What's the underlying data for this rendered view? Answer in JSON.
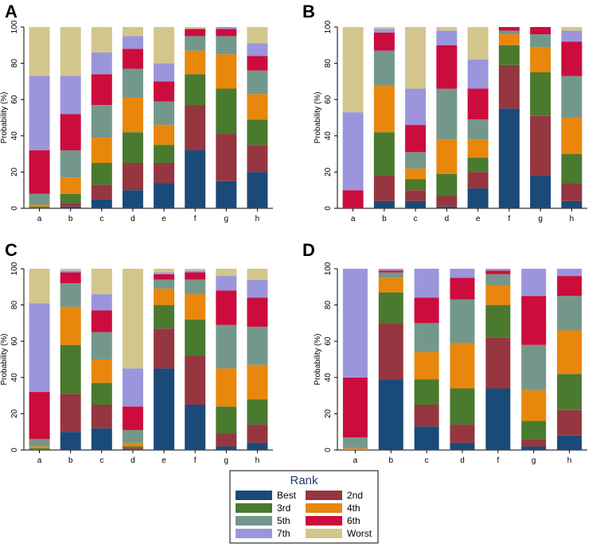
{
  "chart_data": [
    {
      "panel": "A",
      "type": "bar",
      "stacked": true,
      "ylabel": "Probability (%)",
      "xlabel": "",
      "ylim": [
        0,
        100
      ],
      "yticks": [
        "0",
        "20",
        "40",
        "60",
        "80",
        "100"
      ],
      "categories": [
        "a",
        "b",
        "c",
        "d",
        "e",
        "f",
        "g",
        "h"
      ],
      "series": [
        {
          "name": "Best",
          "values": [
            0,
            1,
            5,
            10,
            14,
            32,
            15,
            20
          ]
        },
        {
          "name": "2nd",
          "values": [
            0,
            2,
            8,
            15,
            11,
            25,
            26,
            15
          ]
        },
        {
          "name": "3rd",
          "values": [
            1,
            5,
            12,
            17,
            10,
            17,
            25,
            14
          ]
        },
        {
          "name": "4th",
          "values": [
            1,
            9,
            14,
            19,
            11,
            13,
            19,
            14
          ]
        },
        {
          "name": "5th",
          "values": [
            6,
            15,
            18,
            16,
            13,
            8,
            10,
            13
          ]
        },
        {
          "name": "6th",
          "values": [
            24,
            20,
            17,
            11,
            11,
            4,
            4,
            8
          ]
        },
        {
          "name": "7th",
          "values": [
            41,
            21,
            12,
            7,
            10,
            0,
            1,
            7
          ]
        },
        {
          "name": "Worst",
          "values": [
            27,
            27,
            14,
            5,
            20,
            1,
            0,
            9
          ]
        }
      ]
    },
    {
      "panel": "B",
      "type": "bar",
      "stacked": true,
      "ylabel": "Probability (%)",
      "xlabel": "",
      "ylim": [
        0,
        100
      ],
      "yticks": [
        "0",
        "20",
        "40",
        "60",
        "80",
        "100"
      ],
      "categories": [
        "a",
        "b",
        "c",
        "d",
        "e",
        "f",
        "g",
        "h"
      ],
      "series": [
        {
          "name": "Best",
          "values": [
            0,
            4,
            4,
            1,
            11,
            55,
            18,
            4
          ]
        },
        {
          "name": "2nd",
          "values": [
            0,
            14,
            6,
            6,
            9,
            24,
            33,
            10
          ]
        },
        {
          "name": "3rd",
          "values": [
            0,
            24,
            6,
            12,
            8,
            11,
            24,
            16
          ]
        },
        {
          "name": "4th",
          "values": [
            0,
            26,
            6,
            19,
            10,
            6,
            14,
            20
          ]
        },
        {
          "name": "5th",
          "values": [
            0,
            19,
            9,
            28,
            11,
            2,
            7,
            23
          ]
        },
        {
          "name": "6th",
          "values": [
            10,
            10,
            15,
            24,
            17,
            2,
            4,
            19
          ]
        },
        {
          "name": "7th",
          "values": [
            43,
            2,
            20,
            8,
            16,
            0,
            0,
            6
          ]
        },
        {
          "name": "Worst",
          "values": [
            47,
            1,
            34,
            2,
            18,
            0,
            0,
            2
          ]
        }
      ]
    },
    {
      "panel": "C",
      "type": "bar",
      "stacked": true,
      "ylabel": "Probability (%)",
      "xlabel": "",
      "ylim": [
        0,
        100
      ],
      "yticks": [
        "0",
        "20",
        "40",
        "60",
        "80",
        "100"
      ],
      "categories": [
        "a",
        "b",
        "c",
        "d",
        "e",
        "f",
        "g",
        "h"
      ],
      "series": [
        {
          "name": "Best",
          "values": [
            0,
            10,
            12,
            0,
            45,
            25,
            2,
            4
          ]
        },
        {
          "name": "2nd",
          "values": [
            0,
            21,
            13,
            1,
            22,
            27,
            7,
            10
          ]
        },
        {
          "name": "3rd",
          "values": [
            1,
            27,
            12,
            1,
            13,
            20,
            15,
            14
          ]
        },
        {
          "name": "4th",
          "values": [
            1,
            21,
            13,
            2,
            9,
            14,
            21,
            19
          ]
        },
        {
          "name": "5th",
          "values": [
            4,
            13,
            15,
            7,
            5,
            8,
            24,
            21
          ]
        },
        {
          "name": "6th",
          "values": [
            26,
            6,
            12,
            13,
            3,
            4,
            19,
            16
          ]
        },
        {
          "name": "7th",
          "values": [
            49,
            1,
            9,
            21,
            1,
            1,
            8,
            10
          ]
        },
        {
          "name": "Worst",
          "values": [
            19,
            1,
            14,
            55,
            2,
            1,
            4,
            6
          ]
        }
      ]
    },
    {
      "panel": "D",
      "type": "bar",
      "stacked": true,
      "ylabel": "Probability (%)",
      "xlabel": "",
      "ylim": [
        0,
        100
      ],
      "yticks": [
        "0",
        "20",
        "40",
        "60",
        "80",
        "100"
      ],
      "categories": [
        "a",
        "b",
        "c",
        "d",
        "f",
        "g",
        "h"
      ],
      "series": [
        {
          "name": "Best",
          "values": [
            0,
            39,
            13,
            4,
            34,
            2,
            8
          ]
        },
        {
          "name": "2nd",
          "values": [
            0,
            31,
            12,
            10,
            28,
            4,
            14
          ]
        },
        {
          "name": "3rd",
          "values": [
            0,
            17,
            14,
            20,
            18,
            10,
            20
          ]
        },
        {
          "name": "4th",
          "values": [
            1,
            8,
            15,
            25,
            11,
            17,
            24
          ]
        },
        {
          "name": "5th",
          "values": [
            6,
            3,
            16,
            24,
            6,
            25,
            19
          ]
        },
        {
          "name": "6th",
          "values": [
            33,
            1,
            14,
            12,
            2,
            27,
            11
          ]
        },
        {
          "name": "7th",
          "values": [
            60,
            1,
            16,
            5,
            1,
            15,
            4
          ]
        },
        {
          "name": "Worst",
          "values": [
            0,
            0,
            0,
            0,
            0,
            0,
            0
          ]
        }
      ]
    }
  ],
  "legend": {
    "title": "Rank",
    "items": [
      {
        "label": "Best",
        "color": "#1a4a78"
      },
      {
        "label": "2nd",
        "color": "#953640"
      },
      {
        "label": "3rd",
        "color": "#4a7a2e"
      },
      {
        "label": "4th",
        "color": "#e8870c"
      },
      {
        "label": "5th",
        "color": "#74978c"
      },
      {
        "label": "6th",
        "color": "#cc0c3c"
      },
      {
        "label": "7th",
        "color": "#9b96dc"
      },
      {
        "label": "Worst",
        "color": "#d3c68c"
      }
    ]
  }
}
